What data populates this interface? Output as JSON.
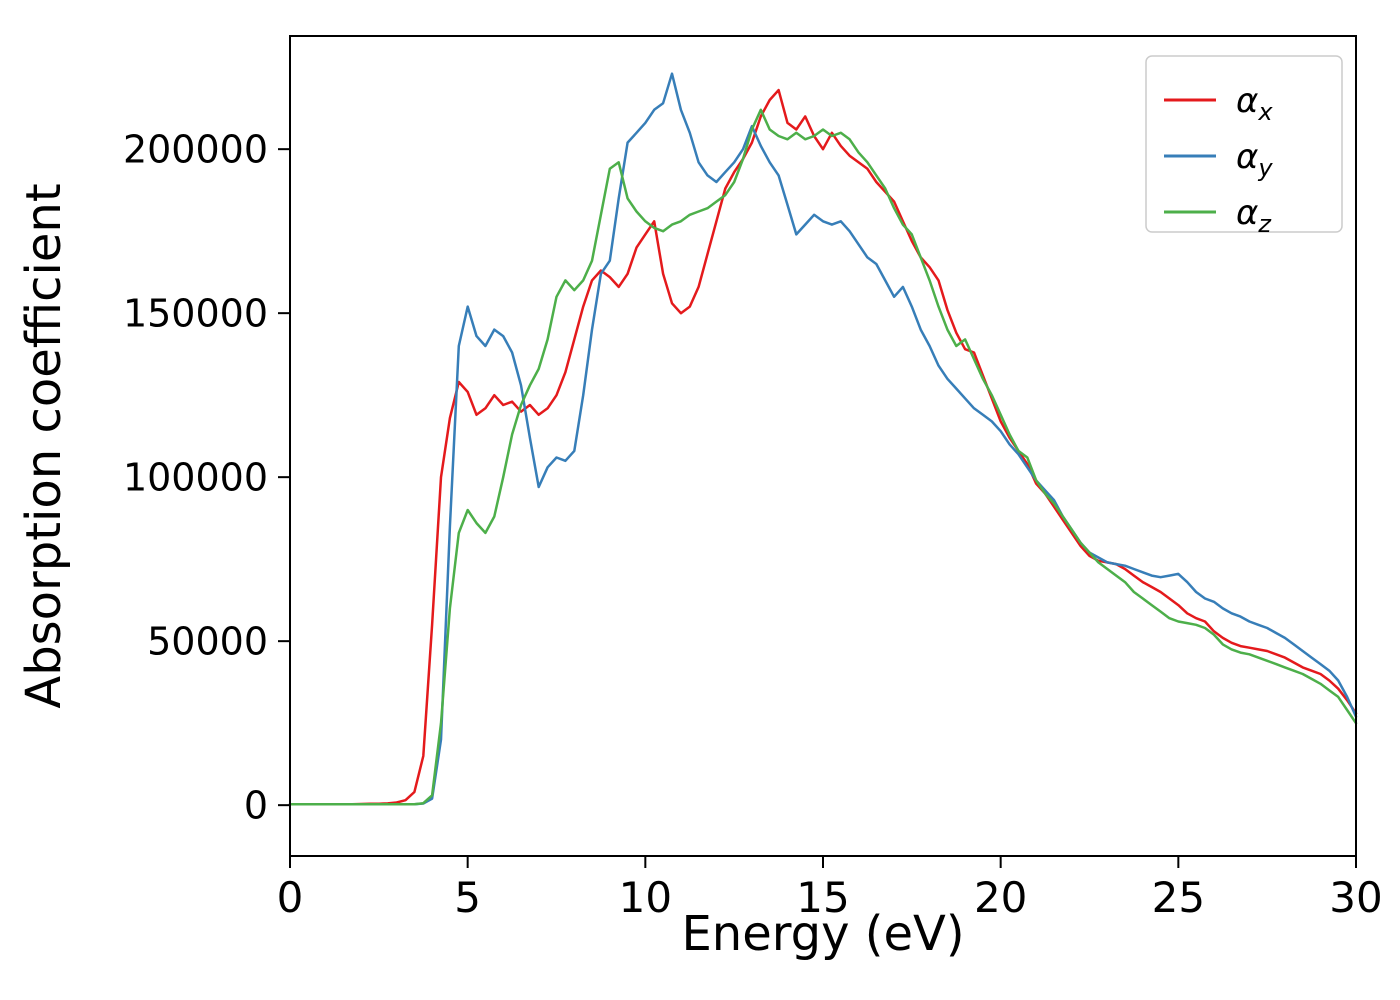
{
  "figure": {
    "background": "#ffffff"
  },
  "axes": {
    "x_label": "Energy (eV)",
    "y_label": "Absorption coefficient"
  },
  "legend": {
    "position": "upper right",
    "entries": [
      {
        "symbol": "α",
        "subscript": "x",
        "color": "#e41a1c"
      },
      {
        "symbol": "α",
        "subscript": "y",
        "color": "#377eb8"
      },
      {
        "symbol": "α",
        "subscript": "z",
        "color": "#4daf4a"
      }
    ]
  },
  "chart_data": {
    "type": "line",
    "title": "",
    "xlabel": "Energy (eV)",
    "ylabel": "Absorption coefficient",
    "xlim": [
      0,
      30
    ],
    "ylim": [
      -15500,
      234500
    ],
    "x_ticks": [
      0,
      5,
      10,
      15,
      20,
      25,
      30
    ],
    "y_ticks": [
      0,
      50000,
      100000,
      150000,
      200000
    ],
    "grid": false,
    "legend_position": "upper right",
    "x": [
      0,
      0.25,
      0.5,
      0.75,
      1,
      1.25,
      1.5,
      1.75,
      2,
      2.25,
      2.5,
      2.75,
      3,
      3.25,
      3.5,
      3.75,
      4,
      4.25,
      4.5,
      4.75,
      5,
      5.25,
      5.5,
      5.75,
      6,
      6.25,
      6.5,
      6.75,
      7,
      7.25,
      7.5,
      7.75,
      8,
      8.25,
      8.5,
      8.75,
      9,
      9.25,
      9.5,
      9.75,
      10,
      10.25,
      10.5,
      10.75,
      11,
      11.25,
      11.5,
      11.75,
      12,
      12.25,
      12.5,
      12.75,
      13,
      13.25,
      13.5,
      13.75,
      14,
      14.25,
      14.5,
      14.75,
      15,
      15.25,
      15.5,
      15.75,
      16,
      16.25,
      16.5,
      16.75,
      17,
      17.25,
      17.5,
      17.75,
      18,
      18.25,
      18.5,
      18.75,
      19,
      19.25,
      19.5,
      19.75,
      20,
      20.25,
      20.5,
      20.75,
      21,
      21.25,
      21.5,
      21.75,
      22,
      22.25,
      22.5,
      22.75,
      23,
      23.25,
      23.5,
      23.75,
      24,
      24.25,
      24.5,
      24.75,
      25,
      25.25,
      25.5,
      25.75,
      26,
      26.25,
      26.5,
      26.75,
      27,
      27.25,
      27.5,
      27.75,
      28,
      28.25,
      28.5,
      28.75,
      29,
      29.25,
      29.5,
      29.75,
      30
    ],
    "series": [
      {
        "name": "alpha_x",
        "color": "#e41a1c",
        "values": [
          300,
          300,
          300,
          300,
          300,
          300,
          300,
          300,
          350,
          400,
          450,
          550,
          800,
          1500,
          4000,
          15000,
          55000,
          100000,
          118000,
          129000,
          126000,
          119000,
          121000,
          125000,
          122000,
          123000,
          120000,
          122000,
          119000,
          121000,
          125000,
          132000,
          142000,
          152000,
          160000,
          163000,
          161000,
          158000,
          162000,
          170000,
          174000,
          178000,
          162000,
          153000,
          150000,
          152000,
          158000,
          168000,
          178000,
          188000,
          193000,
          197000,
          202000,
          210000,
          215000,
          218000,
          208000,
          206000,
          210000,
          204000,
          200000,
          205000,
          201000,
          198000,
          196000,
          194000,
          190000,
          187000,
          184000,
          178000,
          172000,
          167000,
          164000,
          160000,
          151000,
          144000,
          139000,
          138000,
          131000,
          124000,
          117000,
          112000,
          108000,
          104000,
          98000,
          95000,
          91000,
          87000,
          83000,
          79000,
          76000,
          74500,
          74000,
          73500,
          72000,
          70000,
          68000,
          66500,
          65000,
          63000,
          61000,
          58500,
          57000,
          56000,
          53000,
          51000,
          49500,
          48500,
          48000,
          47500,
          47000,
          46000,
          45000,
          43500,
          42000,
          41000,
          40000,
          38000,
          35500,
          32000,
          28000
        ]
      },
      {
        "name": "alpha_y",
        "color": "#377eb8",
        "values": [
          300,
          300,
          300,
          300,
          300,
          300,
          300,
          300,
          300,
          300,
          300,
          300,
          300,
          300,
          300,
          500,
          2000,
          20000,
          85000,
          140000,
          152000,
          143000,
          140000,
          145000,
          143000,
          138000,
          128000,
          112000,
          97000,
          103000,
          106000,
          105000,
          108000,
          125000,
          145000,
          162000,
          166000,
          185000,
          202000,
          205000,
          208000,
          212000,
          214000,
          223000,
          212000,
          205000,
          196000,
          192000,
          190000,
          193000,
          196000,
          200000,
          207000,
          201000,
          196000,
          192000,
          183000,
          174000,
          177000,
          180000,
          178000,
          177000,
          178000,
          175000,
          171000,
          167000,
          165000,
          160000,
          155000,
          158000,
          152000,
          145000,
          140000,
          134000,
          130000,
          127000,
          124000,
          121000,
          119000,
          117000,
          114000,
          110000,
          107000,
          103000,
          99000,
          96000,
          93000,
          88000,
          84000,
          80000,
          77000,
          75500,
          74000,
          73500,
          73000,
          72000,
          71000,
          70000,
          69500,
          70000,
          70500,
          68000,
          65000,
          63000,
          62000,
          60000,
          58500,
          57500,
          56000,
          55000,
          54000,
          52500,
          51000,
          49000,
          47000,
          45000,
          43000,
          41000,
          38000,
          33000,
          27000
        ]
      },
      {
        "name": "alpha_z",
        "color": "#4daf4a",
        "values": [
          300,
          300,
          300,
          300,
          300,
          300,
          300,
          300,
          300,
          300,
          300,
          300,
          300,
          300,
          300,
          600,
          3000,
          25000,
          60000,
          83000,
          90000,
          86000,
          83000,
          88000,
          100000,
          113000,
          122000,
          128000,
          133000,
          142000,
          155000,
          160000,
          157000,
          160000,
          166000,
          180000,
          194000,
          196000,
          185000,
          181000,
          178000,
          176000,
          175000,
          177000,
          178000,
          180000,
          181000,
          182000,
          184000,
          186000,
          190000,
          197000,
          206000,
          212000,
          206000,
          204000,
          203000,
          205000,
          203000,
          204000,
          206000,
          204000,
          205000,
          203000,
          199000,
          196000,
          192000,
          188000,
          182000,
          177000,
          174000,
          167000,
          160000,
          152000,
          145000,
          140000,
          142000,
          136000,
          130000,
          125000,
          119000,
          113000,
          108000,
          106000,
          99000,
          95000,
          92000,
          88000,
          84000,
          80000,
          77000,
          74000,
          72000,
          70000,
          68000,
          65000,
          63000,
          61000,
          59000,
          57000,
          56000,
          55500,
          55000,
          54000,
          52000,
          49000,
          47500,
          46500,
          46000,
          45000,
          44000,
          43000,
          42000,
          41000,
          40000,
          38500,
          37000,
          35000,
          33000,
          29000,
          25000
        ]
      }
    ]
  }
}
